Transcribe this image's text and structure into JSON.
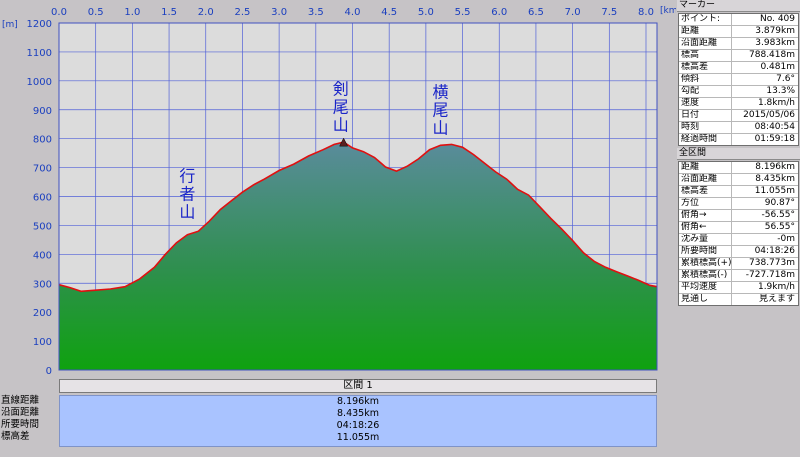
{
  "colors": {
    "plot_bg": "#dcdcdc",
    "grid": "#5060d8",
    "profile_line": "#e01010",
    "fill_top": "#5a8c9c",
    "fill_bottom": "#0fa20f",
    "axis_text": "#1a3fbf",
    "peak_text": "#1a25c8"
  },
  "chart_data": {
    "type": "area",
    "xlabel": "[km]",
    "ylabel": "[m]",
    "xlim": [
      0.0,
      8.15
    ],
    "ylim": [
      0,
      1200
    ],
    "x_ticks": [
      "0.0",
      "0.5",
      "1.0",
      "1.5",
      "2.0",
      "2.5",
      "3.0",
      "3.5",
      "4.0",
      "4.5",
      "5.0",
      "5.5",
      "6.0",
      "6.5",
      "7.0",
      "7.5",
      "8.0"
    ],
    "y_ticks": [
      "0",
      "100",
      "200",
      "300",
      "400",
      "500",
      "600",
      "700",
      "800",
      "900",
      "1000",
      "1100",
      "1200"
    ],
    "grid": true,
    "series": [
      {
        "x": [
          0.0,
          0.15,
          0.3,
          0.5,
          0.7,
          0.9,
          1.1,
          1.3,
          1.45,
          1.6,
          1.75,
          1.9,
          2.05,
          2.2,
          2.35,
          2.5,
          2.65,
          2.8,
          3.0,
          3.2,
          3.4,
          3.6,
          3.75,
          3.879,
          4.0,
          4.15,
          4.3,
          4.45,
          4.6,
          4.75,
          4.9,
          5.05,
          5.2,
          5.35,
          5.5,
          5.65,
          5.8,
          5.95,
          6.1,
          6.25,
          6.4,
          6.55,
          6.7,
          6.85,
          7.0,
          7.15,
          7.3,
          7.45,
          7.6,
          7.75,
          7.9,
          8.05,
          8.15
        ],
        "y": [
          295,
          285,
          272,
          276,
          280,
          288,
          315,
          355,
          400,
          440,
          468,
          480,
          515,
          555,
          585,
          615,
          640,
          660,
          690,
          712,
          740,
          762,
          780,
          788,
          768,
          755,
          735,
          702,
          688,
          705,
          730,
          762,
          777,
          780,
          770,
          745,
          715,
          685,
          660,
          625,
          605,
          565,
          525,
          488,
          448,
          405,
          375,
          355,
          340,
          325,
          310,
          293,
          288
        ]
      }
    ],
    "annotations": [
      {
        "text": "行者山",
        "x": 1.75,
        "y": 500
      },
      {
        "text": "剣尾山",
        "x": 3.84,
        "y": 800
      },
      {
        "text": "横尾山",
        "x": 5.2,
        "y": 790
      }
    ]
  },
  "section": {
    "header": "区間 1",
    "rows": [
      {
        "label": "直線距離",
        "value": "8.196km"
      },
      {
        "label": "沿面距離",
        "value": "8.435km"
      },
      {
        "label": "所要時間",
        "value": "04:18:26"
      },
      {
        "label": "標高差",
        "value": "11.055m"
      }
    ]
  },
  "marker_panel": {
    "title": "マーカー",
    "rows": [
      {
        "key": "ポイント:",
        "value": "No. 409"
      },
      {
        "key": "距離",
        "value": "3.879km"
      },
      {
        "key": "沿面距離",
        "value": "3.983km"
      },
      {
        "key": "標高",
        "value": "788.418m"
      },
      {
        "key": "標高差",
        "value": "0.481m"
      },
      {
        "key": "傾斜",
        "value": "7.6°"
      },
      {
        "key": "勾配",
        "value": "13.3%"
      },
      {
        "key": "速度",
        "value": "1.8km/h"
      },
      {
        "key": "日付",
        "value": "2015/05/06"
      },
      {
        "key": "時刻",
        "value": "08:40:54"
      },
      {
        "key": "経過時間",
        "value": "01:59:18"
      }
    ]
  },
  "total_panel": {
    "title": "全区間",
    "rows": [
      {
        "key": "距離",
        "value": "8.196km"
      },
      {
        "key": "沿面距離",
        "value": "8.435km"
      },
      {
        "key": "標高差",
        "value": "11.055m"
      },
      {
        "key": "方位",
        "value": "90.87°"
      },
      {
        "key": "俯角→",
        "value": "-56.55°"
      },
      {
        "key": "俯角←",
        "value": "56.55°"
      },
      {
        "key": "沈み量",
        "value": "-0m"
      },
      {
        "key": "所要時間",
        "value": "04:18:26"
      },
      {
        "key": "累積標高(+)",
        "value": "738.773m"
      },
      {
        "key": "累積標高(-)",
        "value": "-727.718m"
      },
      {
        "key": "平均速度",
        "value": "1.9km/h"
      },
      {
        "key": "見通し",
        "value": "見えます"
      }
    ]
  }
}
